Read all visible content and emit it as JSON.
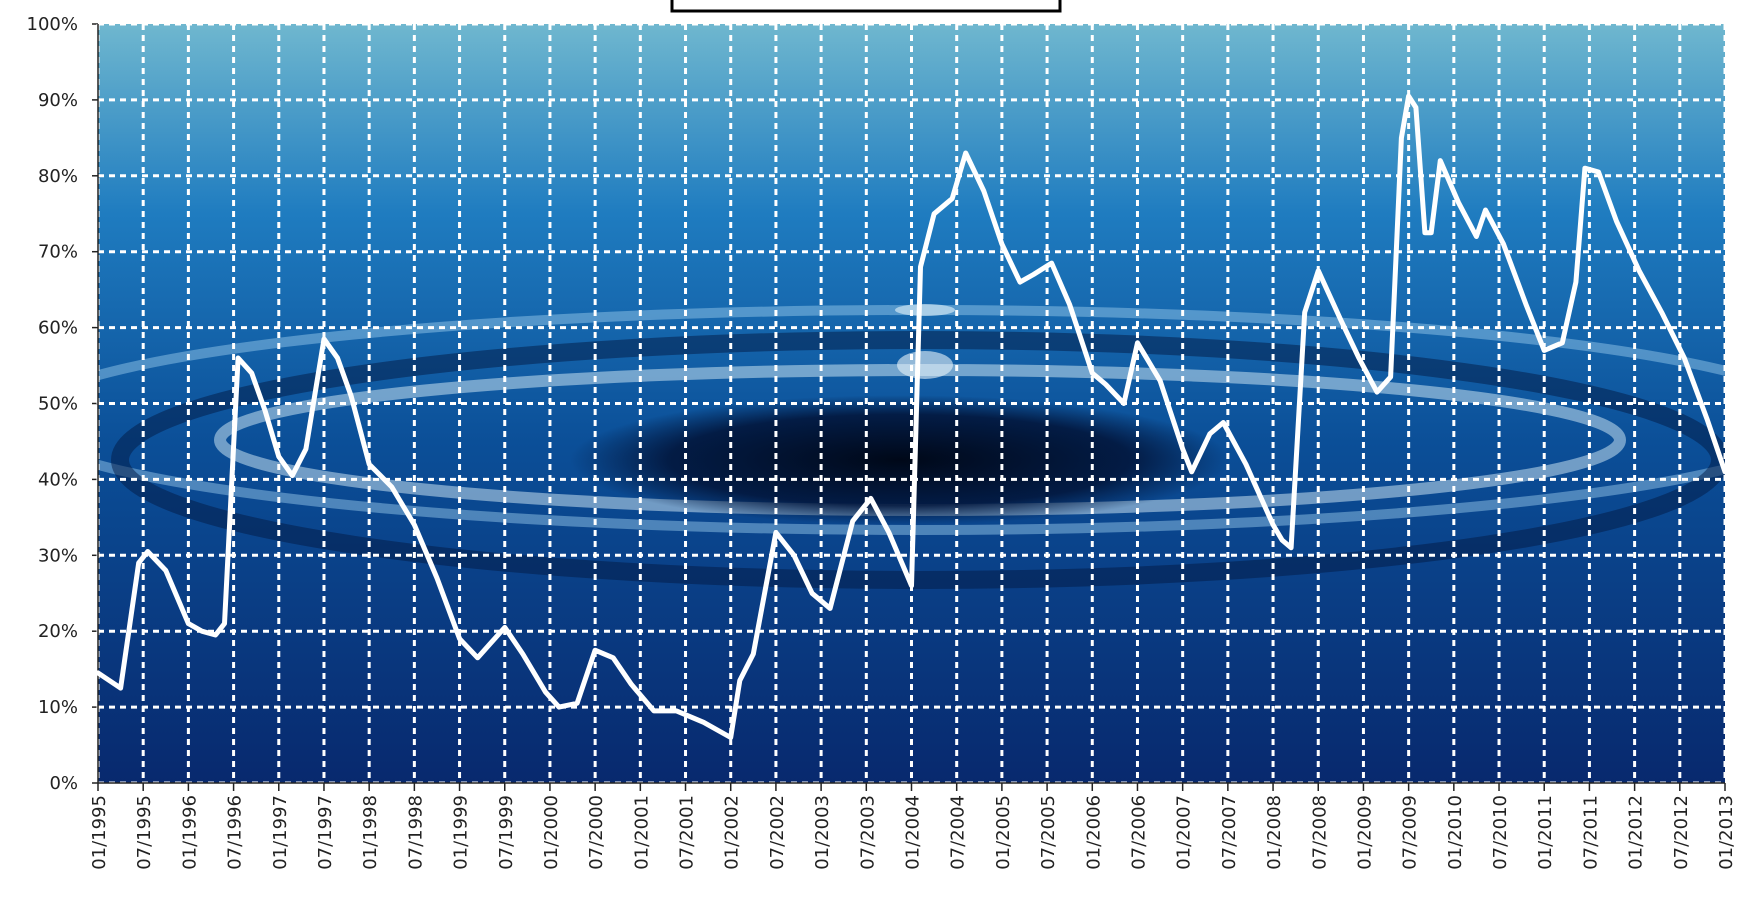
{
  "chart_data": {
    "type": "line",
    "color": "#ffffff",
    "grid": true,
    "xlim": [
      1995,
      2013
    ],
    "ylim": [
      0,
      100
    ],
    "yticks": [
      {
        "value": 0,
        "label": "0%"
      },
      {
        "value": 10,
        "label": "10%"
      },
      {
        "value": 20,
        "label": "20%"
      },
      {
        "value": 30,
        "label": "30%"
      },
      {
        "value": 40,
        "label": "40%"
      },
      {
        "value": 50,
        "label": "50%"
      },
      {
        "value": 60,
        "label": "60%"
      },
      {
        "value": 70,
        "label": "70%"
      },
      {
        "value": 80,
        "label": "80%"
      },
      {
        "value": 90,
        "label": "90%"
      },
      {
        "value": 100,
        "label": "100%"
      }
    ],
    "xticks": [
      {
        "value": 1995,
        "label": "01/1995"
      },
      {
        "value": 1995.5,
        "label": "07/1995"
      },
      {
        "value": 1996,
        "label": "01/1996"
      },
      {
        "value": 1996.5,
        "label": "07/1996"
      },
      {
        "value": 1997,
        "label": "01/1997"
      },
      {
        "value": 1997.5,
        "label": "07/1997"
      },
      {
        "value": 1998,
        "label": "01/1998"
      },
      {
        "value": 1998.5,
        "label": "07/1998"
      },
      {
        "value": 1999,
        "label": "01/1999"
      },
      {
        "value": 1999.5,
        "label": "07/1999"
      },
      {
        "value": 2000,
        "label": "01/2000"
      },
      {
        "value": 2000.5,
        "label": "07/2000"
      },
      {
        "value": 2001,
        "label": "01/2001"
      },
      {
        "value": 2001.5,
        "label": "07/2001"
      },
      {
        "value": 2002,
        "label": "01/2002"
      },
      {
        "value": 2002.5,
        "label": "07/2002"
      },
      {
        "value": 2003,
        "label": "01/2003"
      },
      {
        "value": 2003.5,
        "label": "07/2003"
      },
      {
        "value": 2004,
        "label": "01/2004"
      },
      {
        "value": 2004.5,
        "label": "07/2004"
      },
      {
        "value": 2005,
        "label": "01/2005"
      },
      {
        "value": 2005.5,
        "label": "07/2005"
      },
      {
        "value": 2006,
        "label": "01/2006"
      },
      {
        "value": 2006.5,
        "label": "07/2006"
      },
      {
        "value": 2007,
        "label": "01/2007"
      },
      {
        "value": 2007.5,
        "label": "07/2007"
      },
      {
        "value": 2008,
        "label": "01/2008"
      },
      {
        "value": 2008.5,
        "label": "07/2008"
      },
      {
        "value": 2009,
        "label": "01/2009"
      },
      {
        "value": 2009.5,
        "label": "07/2009"
      },
      {
        "value": 2010,
        "label": "01/2010"
      },
      {
        "value": 2010.5,
        "label": "07/2010"
      },
      {
        "value": 2011,
        "label": "01/2011"
      },
      {
        "value": 2011.5,
        "label": "07/2011"
      },
      {
        "value": 2012,
        "label": "01/2012"
      },
      {
        "value": 2012.5,
        "label": "07/2012"
      },
      {
        "value": 2013,
        "label": "01/2013"
      }
    ],
    "x": [
      1995,
      1995.25,
      1995.45,
      1995.55,
      1995.75,
      1996,
      1996.15,
      1996.3,
      1996.4,
      1996.55,
      1996.7,
      1996.85,
      1997,
      1997.15,
      1997.3,
      1997.5,
      1997.65,
      1997.8,
      1998,
      1998.25,
      1998.5,
      1998.75,
      1999,
      1999.2,
      1999.35,
      1999.5,
      1999.7,
      1999.95,
      2000.1,
      2000.3,
      2000.5,
      2000.7,
      2000.9,
      2001.15,
      2001.4,
      2001.7,
      2002,
      2002.1,
      2002.25,
      2002.5,
      2002.7,
      2002.9,
      2003.1,
      2003.35,
      2003.55,
      2003.75,
      2004,
      2004.1,
      2004.25,
      2004.45,
      2004.6,
      2004.8,
      2005,
      2005.2,
      2005.35,
      2005.55,
      2005.75,
      2006,
      2006.15,
      2006.35,
      2006.5,
      2006.75,
      2007,
      2007.1,
      2007.3,
      2007.45,
      2007.7,
      2008,
      2008.1,
      2008.2,
      2008.35,
      2008.5,
      2008.75,
      2008.95,
      2009.15,
      2009.3,
      2009.42,
      2009.5,
      2009.58,
      2009.68,
      2009.75,
      2009.85,
      2010.05,
      2010.25,
      2010.35,
      2010.55,
      2010.8,
      2011,
      2011.2,
      2011.35,
      2011.45,
      2011.6,
      2011.8,
      2012.05,
      2012.3,
      2012.55,
      2012.8,
      2013
    ],
    "values": [
      14.5,
      12.5,
      29,
      30.5,
      28,
      21,
      20,
      19.5,
      21,
      56,
      54,
      49,
      43,
      40.5,
      44,
      58.5,
      56,
      51,
      42,
      39,
      34,
      27,
      19,
      16.5,
      18.5,
      20.5,
      17,
      12,
      10,
      10.5,
      17.5,
      16.5,
      13,
      9.5,
      9.5,
      8,
      6,
      13.5,
      17,
      33,
      30,
      25,
      23,
      34.5,
      37.5,
      33,
      26,
      68,
      75,
      77,
      83,
      78,
      71,
      66,
      67,
      68.5,
      63,
      54,
      52.5,
      50,
      58,
      53,
      44,
      41,
      46,
      47.5,
      42,
      34,
      32,
      31,
      62,
      67.5,
      61,
      56,
      51.5,
      53.5,
      85,
      90.5,
      89,
      72.5,
      72.5,
      82,
      76.5,
      72,
      75.5,
      71,
      63,
      57,
      58,
      66,
      81,
      80.5,
      74,
      67.5,
      62,
      56,
      48,
      41
    ]
  }
}
